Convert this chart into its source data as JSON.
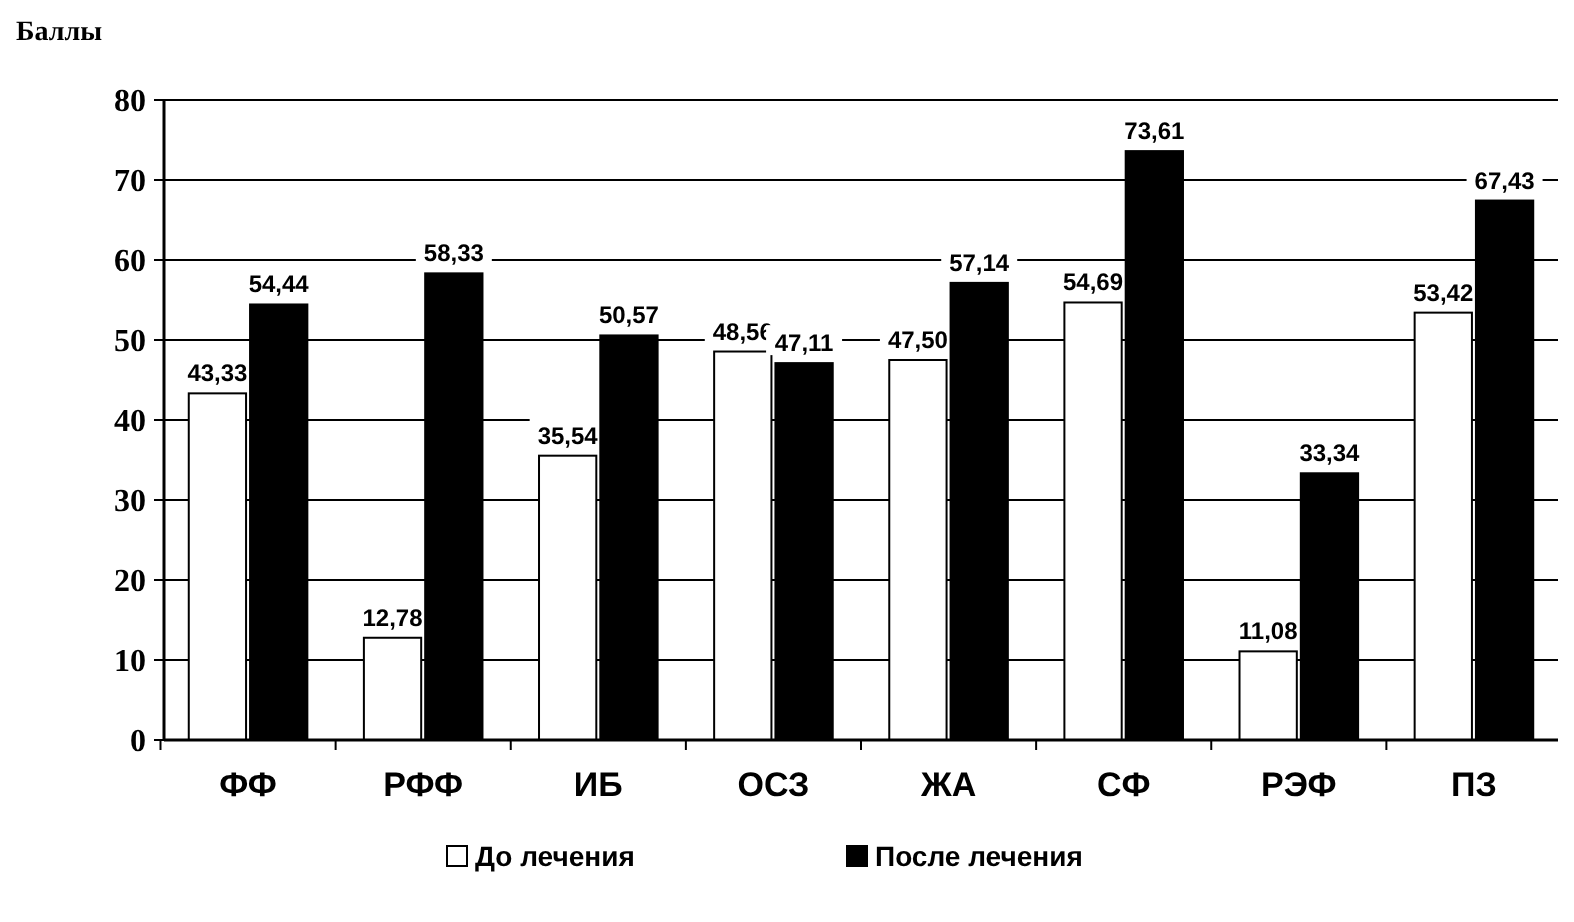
{
  "chart_data": {
    "type": "bar",
    "ylabel": "Баллы",
    "categories": [
      "ФФ",
      "РФФ",
      "ИБ",
      "ОСЗ",
      "ЖА",
      "СФ",
      "РЭФ",
      "ПЗ"
    ],
    "series": [
      {
        "name": "До лечения",
        "color": "#ffffff",
        "values": [
          43.33,
          12.78,
          35.54,
          48.56,
          47.5,
          54.69,
          11.08,
          53.42
        ],
        "value_labels": [
          "43,33",
          "12,78",
          "35,54",
          "48,56",
          "47,50",
          "54,69",
          "11,08",
          "53,42"
        ]
      },
      {
        "name": "После лечения",
        "color": "#000000",
        "values": [
          54.44,
          58.33,
          50.57,
          47.11,
          57.14,
          73.61,
          33.34,
          67.43
        ],
        "value_labels": [
          "54,44",
          "58,33",
          "50,57",
          "47,11",
          "57,14",
          "73,61",
          "33,34",
          "67,43"
        ]
      }
    ],
    "ylim": [
      0,
      80
    ],
    "yticks": [
      0,
      10,
      20,
      30,
      40,
      50,
      60,
      70,
      80
    ],
    "grid": "y",
    "legend": "bottom"
  }
}
